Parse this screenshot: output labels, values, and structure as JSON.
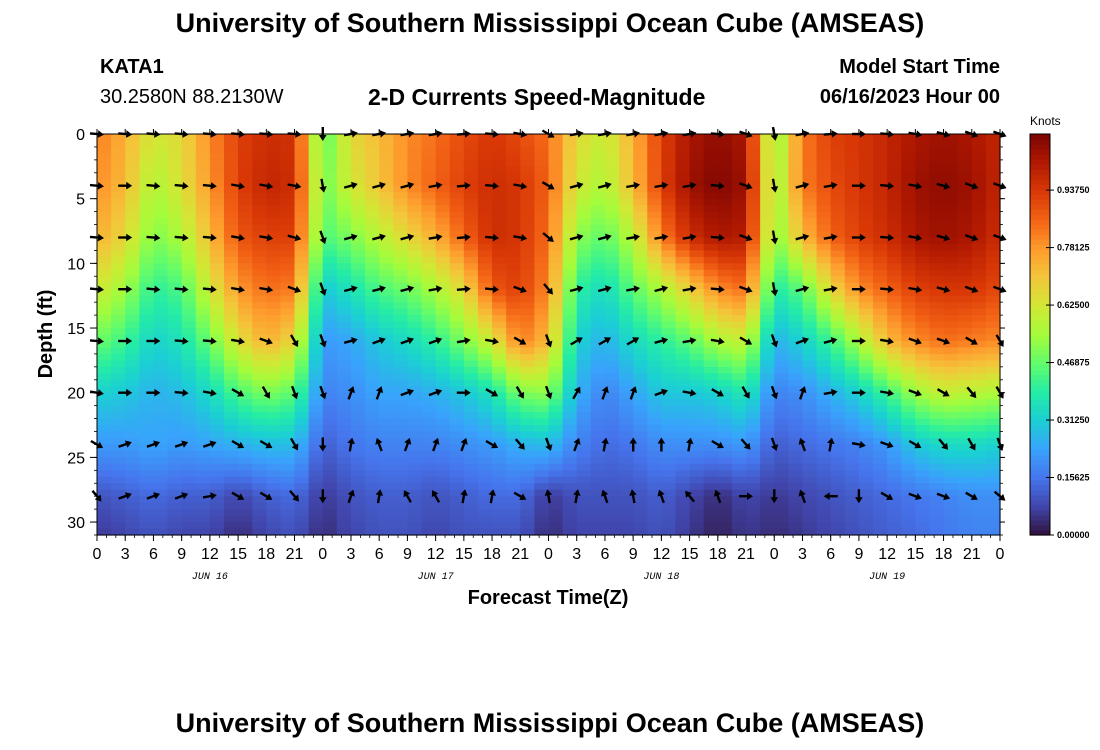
{
  "header": {
    "title": "University of Southern Mississippi Ocean Cube (AMSEAS)",
    "station": "KATA1",
    "coordinates": "30.2580N  88.2130W",
    "subtitle": "2-D Currents Speed-Magnitude",
    "start_label": "Model Start Time",
    "start_value": "06/16/2023 Hour 00"
  },
  "footer": {
    "title": "University of Southern Mississippi Ocean Cube (AMSEAS)"
  },
  "chart_data": {
    "type": "heatmap",
    "title": "2-D Currents Speed-Magnitude",
    "xlabel": "Forecast Time(Z)",
    "ylabel": "Depth (ft)",
    "xlim": [
      0,
      96
    ],
    "ylim": [
      31,
      0
    ],
    "x_ticks": [
      0,
      3,
      6,
      9,
      12,
      15,
      18,
      21,
      24,
      27,
      30,
      33,
      36,
      39,
      42,
      45,
      48,
      51,
      54,
      57,
      60,
      63,
      66,
      69,
      72,
      75,
      78,
      81,
      84,
      87,
      90,
      93,
      96
    ],
    "x_tick_labels": [
      "0",
      "3",
      "6",
      "9",
      "12",
      "15",
      "18",
      "21",
      "0",
      "3",
      "6",
      "9",
      "12",
      "15",
      "18",
      "21",
      "0",
      "3",
      "6",
      "9",
      "12",
      "15",
      "18",
      "21",
      "0",
      "3",
      "6",
      "9",
      "12",
      "15",
      "18",
      "21",
      "0"
    ],
    "y_ticks": [
      0,
      5,
      10,
      15,
      20,
      25,
      30
    ],
    "y_tick_labels": [
      "0",
      "5",
      "10",
      "15",
      "20",
      "25",
      "30"
    ],
    "day_labels": [
      {
        "label": "JUN 16",
        "hour": 12
      },
      {
        "label": "JUN 17",
        "hour": 36
      },
      {
        "label": "JUN 18",
        "hour": 60
      },
      {
        "label": "JUN 19",
        "hour": 84
      }
    ],
    "colorbar": {
      "title": "Knots",
      "min": 0.0,
      "max": 1.09,
      "ticks": [
        0.0,
        0.15625,
        0.3125,
        0.46875,
        0.625,
        0.78125,
        0.9375
      ],
      "tick_labels": [
        "0.00000",
        "0.15625",
        "0.31250",
        "0.46875",
        "0.62500",
        "0.78125",
        "0.93750"
      ],
      "colors": [
        "#30123b",
        "#4145ab",
        "#4675ed",
        "#39a2fc",
        "#1bcfd4",
        "#24eca6",
        "#61fc6c",
        "#a4fc3b",
        "#d1e834",
        "#f3c63a",
        "#fe9b2d",
        "#f36315",
        "#d93806",
        "#b11901",
        "#7a0402"
      ]
    },
    "speed_grid": {
      "hours": [
        0,
        3,
        6,
        9,
        12,
        15,
        18,
        21,
        24,
        27,
        30,
        33,
        36,
        39,
        42,
        45,
        48,
        51,
        54,
        57,
        60,
        63,
        66,
        69,
        72,
        75,
        78,
        81,
        84,
        87,
        90,
        93,
        96
      ],
      "depths": [
        0,
        4,
        8,
        12,
        16,
        20,
        24,
        28,
        31
      ],
      "values": [
        [
          0.82,
          0.74,
          0.62,
          0.66,
          0.8,
          0.92,
          0.96,
          0.95,
          0.45,
          0.66,
          0.72,
          0.8,
          0.84,
          0.9,
          0.94,
          0.9,
          0.84,
          0.66,
          0.6,
          0.74,
          0.92,
          1.02,
          1.06,
          1.02,
          0.5,
          0.82,
          0.92,
          0.94,
          0.98,
          1.02,
          1.04,
          1.02,
          0.98
        ],
        [
          0.8,
          0.72,
          0.56,
          0.64,
          0.78,
          0.92,
          0.98,
          0.96,
          0.48,
          0.62,
          0.7,
          0.8,
          0.86,
          0.92,
          0.96,
          0.94,
          0.86,
          0.62,
          0.56,
          0.72,
          0.92,
          1.04,
          1.08,
          1.04,
          0.52,
          0.82,
          0.9,
          0.94,
          0.98,
          1.04,
          1.06,
          1.04,
          0.98
        ],
        [
          0.74,
          0.66,
          0.5,
          0.56,
          0.72,
          0.88,
          0.92,
          0.92,
          0.44,
          0.5,
          0.58,
          0.66,
          0.74,
          0.86,
          0.96,
          0.94,
          0.84,
          0.52,
          0.46,
          0.58,
          0.82,
          0.96,
          1.02,
          1.0,
          0.5,
          0.72,
          0.86,
          0.92,
          0.96,
          1.02,
          1.04,
          1.02,
          0.96
        ],
        [
          0.62,
          0.54,
          0.4,
          0.44,
          0.62,
          0.78,
          0.84,
          0.82,
          0.3,
          0.36,
          0.44,
          0.48,
          0.56,
          0.66,
          0.88,
          0.92,
          0.8,
          0.4,
          0.34,
          0.46,
          0.56,
          0.68,
          0.8,
          0.84,
          0.38,
          0.46,
          0.66,
          0.8,
          0.86,
          0.92,
          0.94,
          0.94,
          0.9
        ],
        [
          0.48,
          0.42,
          0.32,
          0.36,
          0.48,
          0.64,
          0.74,
          0.66,
          0.22,
          0.24,
          0.3,
          0.34,
          0.4,
          0.5,
          0.62,
          0.82,
          0.72,
          0.32,
          0.26,
          0.34,
          0.4,
          0.46,
          0.56,
          0.6,
          0.26,
          0.32,
          0.42,
          0.56,
          0.72,
          0.8,
          0.84,
          0.82,
          0.8
        ],
        [
          0.32,
          0.3,
          0.26,
          0.28,
          0.34,
          0.44,
          0.5,
          0.46,
          0.18,
          0.2,
          0.24,
          0.24,
          0.26,
          0.3,
          0.36,
          0.5,
          0.52,
          0.26,
          0.18,
          0.24,
          0.3,
          0.3,
          0.32,
          0.38,
          0.18,
          0.2,
          0.26,
          0.32,
          0.42,
          0.54,
          0.6,
          0.58,
          0.56
        ],
        [
          0.22,
          0.22,
          0.24,
          0.22,
          0.24,
          0.26,
          0.28,
          0.28,
          0.12,
          0.16,
          0.18,
          0.18,
          0.18,
          0.2,
          0.22,
          0.26,
          0.28,
          0.18,
          0.14,
          0.16,
          0.2,
          0.2,
          0.2,
          0.22,
          0.12,
          0.14,
          0.16,
          0.18,
          0.22,
          0.3,
          0.34,
          0.34,
          0.32
        ],
        [
          0.1,
          0.12,
          0.14,
          0.12,
          0.12,
          0.08,
          0.12,
          0.14,
          0.06,
          0.1,
          0.12,
          0.12,
          0.1,
          0.12,
          0.14,
          0.14,
          0.06,
          0.1,
          0.1,
          0.1,
          0.12,
          0.08,
          0.04,
          0.08,
          0.06,
          0.08,
          0.1,
          0.12,
          0.14,
          0.16,
          0.18,
          0.2,
          0.2
        ],
        [
          0.06,
          0.08,
          0.1,
          0.08,
          0.08,
          0.04,
          0.08,
          0.1,
          0.04,
          0.08,
          0.1,
          0.1,
          0.08,
          0.1,
          0.1,
          0.1,
          0.04,
          0.08,
          0.08,
          0.08,
          0.1,
          0.06,
          0.02,
          0.06,
          0.04,
          0.06,
          0.08,
          0.1,
          0.12,
          0.14,
          0.16,
          0.18,
          0.18
        ]
      ]
    },
    "current_vectors": {
      "hours": [
        0,
        3,
        6,
        9,
        12,
        15,
        18,
        21,
        24,
        27,
        30,
        33,
        36,
        39,
        42,
        45,
        48,
        51,
        54,
        57,
        60,
        63,
        66,
        69,
        72,
        75,
        78,
        81,
        84,
        87,
        90,
        93,
        96
      ],
      "depths": [
        0,
        4,
        8,
        12,
        16,
        20,
        24,
        28
      ],
      "directions_deg": [
        [
          95,
          95,
          95,
          95,
          95,
          95,
          95,
          95,
          180,
          80,
          80,
          80,
          80,
          85,
          95,
          100,
          120,
          80,
          80,
          80,
          80,
          80,
          95,
          110,
          170,
          80,
          85,
          90,
          95,
          100,
          105,
          110,
          110
        ],
        [
          95,
          90,
          95,
          95,
          95,
          100,
          100,
          100,
          170,
          75,
          75,
          75,
          80,
          85,
          95,
          100,
          120,
          75,
          75,
          80,
          80,
          80,
          95,
          110,
          170,
          75,
          80,
          90,
          95,
          100,
          105,
          110,
          110
        ],
        [
          95,
          90,
          95,
          95,
          95,
          100,
          100,
          105,
          160,
          75,
          75,
          75,
          80,
          85,
          95,
          100,
          130,
          75,
          75,
          80,
          80,
          80,
          95,
          110,
          170,
          75,
          80,
          90,
          95,
          100,
          105,
          110,
          110
        ],
        [
          95,
          90,
          95,
          95,
          95,
          100,
          100,
          110,
          160,
          75,
          75,
          75,
          80,
          85,
          95,
          110,
          140,
          75,
          75,
          80,
          75,
          80,
          95,
          110,
          170,
          75,
          80,
          90,
          95,
          100,
          105,
          110,
          110
        ],
        [
          95,
          90,
          90,
          95,
          95,
          100,
          110,
          150,
          160,
          75,
          70,
          70,
          70,
          80,
          100,
          120,
          160,
          60,
          60,
          60,
          75,
          80,
          100,
          120,
          160,
          70,
          75,
          90,
          100,
          110,
          110,
          120,
          150
        ],
        [
          100,
          90,
          90,
          95,
          100,
          120,
          150,
          160,
          160,
          20,
          20,
          70,
          70,
          90,
          120,
          150,
          160,
          30,
          20,
          20,
          70,
          100,
          120,
          150,
          160,
          20,
          80,
          90,
          100,
          110,
          120,
          140,
          150
        ],
        [
          120,
          70,
          70,
          70,
          70,
          120,
          120,
          150,
          180,
          10,
          340,
          20,
          20,
          20,
          120,
          140,
          160,
          20,
          10,
          0,
          0,
          10,
          120,
          140,
          160,
          340,
          10,
          100,
          110,
          120,
          140,
          150,
          160
        ],
        [
          140,
          70,
          70,
          70,
          80,
          120,
          120,
          140,
          180,
          20,
          10,
          330,
          330,
          10,
          10,
          120,
          350,
          10,
          340,
          350,
          340,
          320,
          340,
          90,
          180,
          340,
          270,
          180,
          120,
          110,
          110,
          120,
          130
        ]
      ]
    }
  }
}
